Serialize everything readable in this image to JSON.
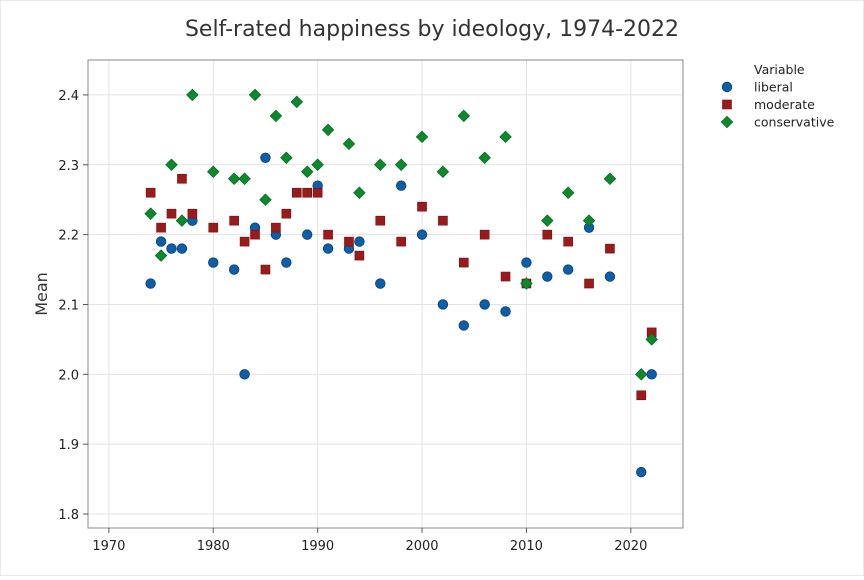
{
  "chart_data": {
    "type": "scatter",
    "title": "Self-rated happiness by ideology, 1974-2022",
    "xlabel": "",
    "ylabel": "Mean",
    "xlim": [
      1968,
      2025
    ],
    "ylim": [
      1.78,
      2.45
    ],
    "x_ticks": [
      1970,
      1980,
      1990,
      2000,
      2010,
      2020
    ],
    "y_ticks": [
      1.8,
      1.9,
      2.0,
      2.1,
      2.2,
      2.3,
      2.4
    ],
    "x_tick_labels": [
      "1970",
      "1980",
      "1990",
      "2000",
      "2010",
      "2020"
    ],
    "y_tick_labels": [
      "1.8",
      "1.9",
      "2.0",
      "2.1",
      "2.2",
      "2.3",
      "2.4"
    ],
    "grid": true,
    "legend": {
      "title": "Variable",
      "position": "right",
      "labels": [
        "liberal",
        "moderate",
        "conservative"
      ]
    },
    "series": [
      {
        "name": "liberal",
        "marker": "circle",
        "color": "#0d5ea8",
        "x": [
          1974,
          1975,
          1976,
          1977,
          1978,
          1980,
          1982,
          1983,
          1984,
          1985,
          1986,
          1987,
          1989,
          1990,
          1991,
          1993,
          1994,
          1996,
          1998,
          2000,
          2002,
          2004,
          2006,
          2008,
          2010,
          2012,
          2014,
          2016,
          2018,
          2021,
          2022
        ],
        "y": [
          2.13,
          2.19,
          2.18,
          2.18,
          2.22,
          2.16,
          2.15,
          2.0,
          2.21,
          2.31,
          2.2,
          2.16,
          2.2,
          2.27,
          2.18,
          2.18,
          2.19,
          2.13,
          2.27,
          2.2,
          2.1,
          2.07,
          2.1,
          2.09,
          2.16,
          2.14,
          2.15,
          2.21,
          2.14,
          1.86,
          2.0
        ]
      },
      {
        "name": "moderate",
        "marker": "square",
        "color": "#9b1b1b",
        "x": [
          1974,
          1975,
          1976,
          1977,
          1978,
          1980,
          1982,
          1983,
          1984,
          1985,
          1986,
          1987,
          1988,
          1989,
          1990,
          1991,
          1993,
          1994,
          1996,
          1998,
          2000,
          2002,
          2004,
          2006,
          2008,
          2010,
          2012,
          2014,
          2016,
          2018,
          2021,
          2022
        ],
        "y": [
          2.26,
          2.21,
          2.23,
          2.28,
          2.23,
          2.21,
          2.22,
          2.19,
          2.2,
          2.15,
          2.21,
          2.23,
          2.26,
          2.26,
          2.26,
          2.2,
          2.19,
          2.17,
          2.22,
          2.19,
          2.24,
          2.22,
          2.16,
          2.2,
          2.14,
          2.13,
          2.2,
          2.19,
          2.13,
          2.18,
          1.97,
          2.06
        ]
      },
      {
        "name": "conservative",
        "marker": "diamond",
        "color": "#0a8a2a",
        "x": [
          1974,
          1975,
          1976,
          1977,
          1978,
          1980,
          1982,
          1983,
          1984,
          1985,
          1986,
          1987,
          1988,
          1989,
          1990,
          1991,
          1993,
          1994,
          1996,
          1998,
          2000,
          2002,
          2004,
          2006,
          2008,
          2010,
          2012,
          2014,
          2016,
          2018,
          2021,
          2022
        ],
        "y": [
          2.23,
          2.17,
          2.3,
          2.22,
          2.4,
          2.29,
          2.28,
          2.28,
          2.4,
          2.25,
          2.37,
          2.31,
          2.39,
          2.29,
          2.3,
          2.35,
          2.33,
          2.26,
          2.3,
          2.3,
          2.34,
          2.29,
          2.37,
          2.31,
          2.34,
          2.13,
          2.22,
          2.26,
          2.22,
          2.28,
          2.0,
          2.05
        ]
      }
    ]
  }
}
